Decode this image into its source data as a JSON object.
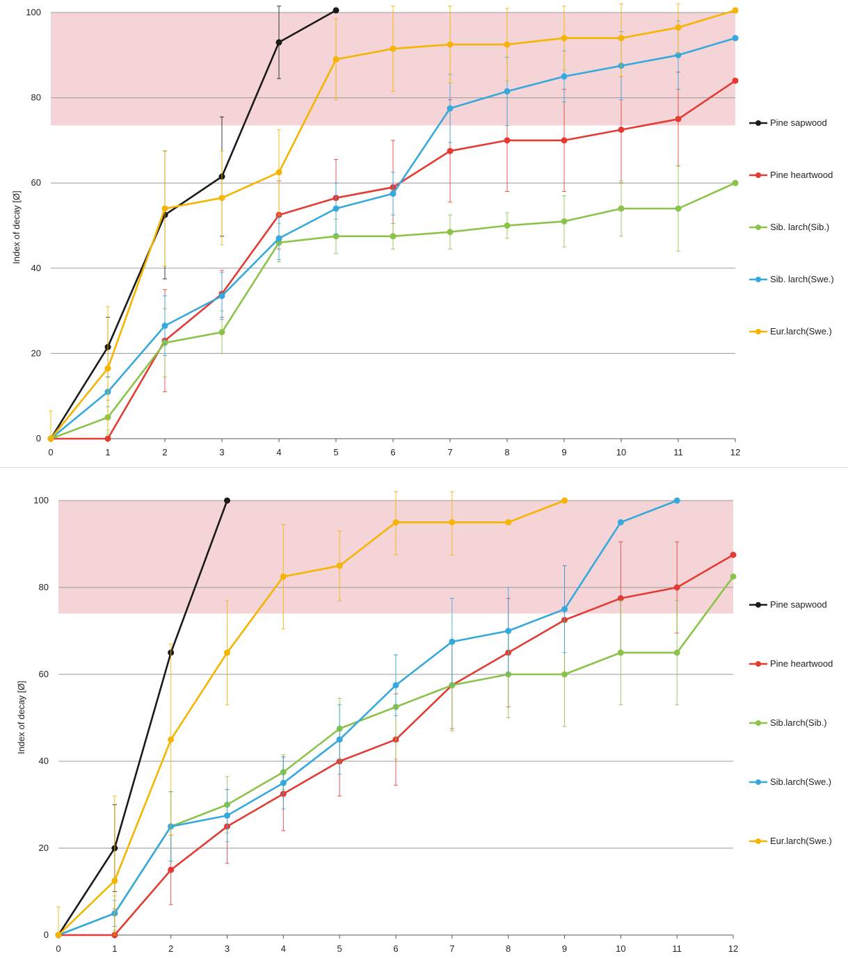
{
  "chart_data": [
    {
      "type": "line",
      "ylabel": "Index of decay [Ø]",
      "xlabel": "",
      "x": [
        0,
        1,
        2,
        3,
        4,
        5,
        6,
        7,
        8,
        9,
        10,
        11,
        12
      ],
      "xticks": [
        "0",
        "1",
        "2",
        "3",
        "4",
        "5",
        "6",
        "7",
        "8",
        "9",
        "10",
        "11",
        "12"
      ],
      "yticks": [
        "0",
        "20",
        "40",
        "60",
        "80",
        "100"
      ],
      "ylim": [
        0,
        100
      ],
      "xlim": [
        0,
        12
      ],
      "grid": "horizontal",
      "shaded_band": {
        "from": 73.5,
        "to": 100,
        "color": "#f4d4d6"
      },
      "legend_position": "right",
      "series": [
        {
          "name": "Pine sapwood",
          "color": "#1a1a1a",
          "values": [
            0,
            21.5,
            52.5,
            61.5,
            93,
            100.5,
            null,
            null,
            null,
            null,
            null,
            null,
            null
          ],
          "errors": [
            0,
            7,
            15,
            14,
            8.5,
            0,
            null,
            null,
            null,
            null,
            null,
            null,
            null
          ]
        },
        {
          "name": "Pine heartwood",
          "color": "#e23b33",
          "values": [
            0,
            0,
            23,
            34,
            52.5,
            56.5,
            59,
            67.5,
            70,
            70,
            72.5,
            75,
            84
          ],
          "errors": [
            0,
            0,
            12,
            5.5,
            8,
            9,
            11,
            12,
            12,
            12,
            12.5,
            11,
            0
          ]
        },
        {
          "name": "Sib. larch(Sib.)",
          "color": "#8bc34a",
          "values": [
            0,
            5,
            22.5,
            25,
            46,
            47.5,
            47.5,
            48.5,
            50,
            51,
            54,
            54,
            60
          ],
          "errors": [
            0,
            4,
            8,
            5,
            4.5,
            4,
            3,
            4,
            3,
            6,
            6.5,
            10,
            0
          ]
        },
        {
          "name": "Sib. larch(Swe.)",
          "color": "#35a8dc",
          "values": [
            0,
            11,
            26.5,
            33.5,
            47,
            54,
            57.5,
            77.5,
            81.5,
            85,
            87.5,
            90,
            94
          ],
          "errors": [
            0,
            3.5,
            7,
            5.5,
            5,
            6,
            5,
            8,
            8,
            6,
            8,
            8,
            0
          ]
        },
        {
          "name": "Eur.larch(Swe.)",
          "color": "#f4b400",
          "values": [
            0,
            16.5,
            54,
            56.5,
            62.5,
            89,
            91.5,
            92.5,
            92.5,
            94,
            94,
            96.5,
            100.5
          ],
          "errors": [
            6.5,
            14.5,
            13.5,
            11,
            10,
            9.5,
            10,
            9,
            8.5,
            7.5,
            9,
            6,
            0
          ]
        }
      ]
    },
    {
      "type": "line",
      "ylabel": "Index of decay [Ø]",
      "xlabel": "",
      "x": [
        0,
        1,
        2,
        3,
        4,
        5,
        6,
        7,
        8,
        9,
        10,
        11,
        12
      ],
      "xticks": [
        "0",
        "1",
        "2",
        "3",
        "4",
        "5",
        "6",
        "7",
        "8",
        "9",
        "10",
        "11",
        "12"
      ],
      "yticks": [
        "0",
        "20",
        "40",
        "60",
        "80",
        "100"
      ],
      "ylim": [
        0,
        100
      ],
      "xlim": [
        0,
        12
      ],
      "grid": "horizontal",
      "shaded_band": {
        "from": 74,
        "to": 100,
        "color": "#f4d4d6"
      },
      "legend_position": "right",
      "series": [
        {
          "name": "Pine sapwood",
          "color": "#1a1a1a",
          "values": [
            0,
            20,
            65,
            100,
            null,
            null,
            null,
            null,
            null,
            null,
            null,
            null,
            null
          ],
          "errors": [
            0,
            10,
            0,
            0,
            null,
            null,
            null,
            null,
            null,
            null,
            null,
            null,
            null
          ]
        },
        {
          "name": "Pine heartwood",
          "color": "#e23b33",
          "values": [
            0,
            0,
            15,
            25,
            32.5,
            40,
            45,
            57.5,
            65,
            72.5,
            77.5,
            80,
            87.5
          ],
          "errors": [
            0,
            6,
            8,
            8.5,
            8.5,
            8,
            10.5,
            10,
            12.5,
            12.5,
            13,
            10.5,
            0
          ]
        },
        {
          "name": "Sib.larch(Sib.)",
          "color": "#8bc34a",
          "values": [
            0,
            5,
            25,
            30,
            37.5,
            47.5,
            52.5,
            57.5,
            60,
            60,
            65,
            65,
            82.5
          ],
          "errors": [
            0,
            4,
            8,
            6.5,
            4,
            7,
            12,
            10.5,
            10,
            12,
            12,
            12,
            0
          ]
        },
        {
          "name": "Sib.larch(Swe.)",
          "color": "#35a8dc",
          "values": [
            0,
            5,
            25,
            27.5,
            35,
            45,
            57.5,
            67.5,
            70,
            75,
            95,
            100,
            null
          ],
          "errors": [
            0,
            3,
            8,
            6,
            6,
            8,
            7,
            10,
            10,
            10,
            0,
            0,
            null
          ]
        },
        {
          "name": "Eur.larch(Swe.)",
          "color": "#f4b400",
          "values": [
            0,
            12.5,
            45,
            65,
            82.5,
            85,
            95,
            95,
            95,
            100,
            null,
            null,
            null
          ],
          "errors": [
            6.5,
            19.5,
            22,
            12,
            12,
            8,
            7.5,
            7.5,
            0,
            0,
            null,
            null,
            null
          ]
        }
      ]
    }
  ]
}
